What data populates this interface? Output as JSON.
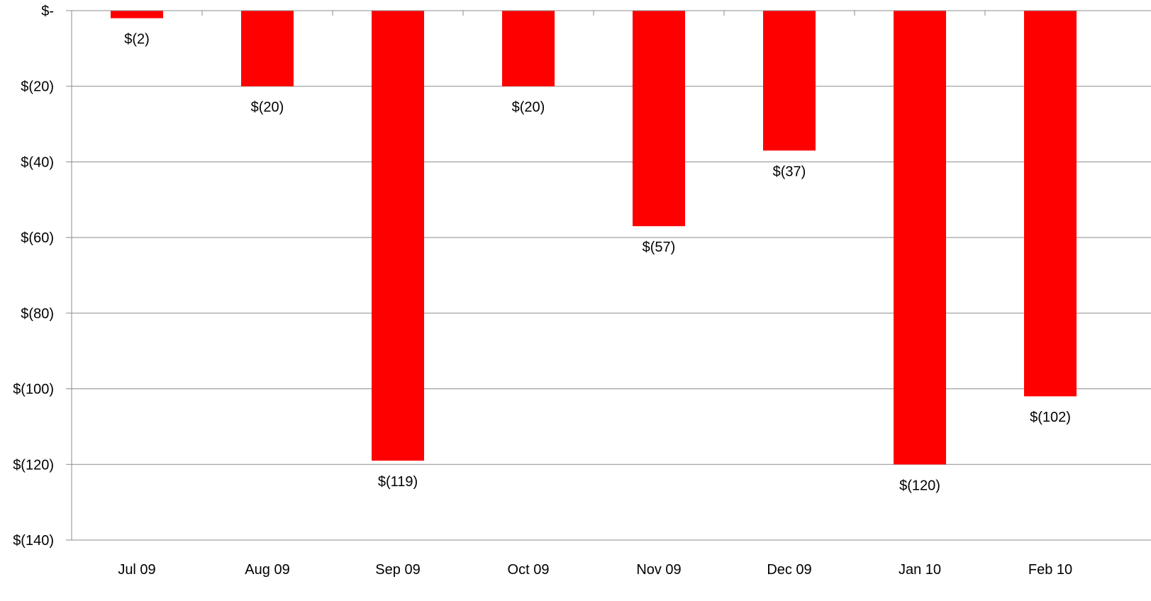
{
  "chart_data": {
    "type": "bar",
    "categories": [
      "Jul 09",
      "Aug 09",
      "Sep 09",
      "Oct 09",
      "Nov 09",
      "Dec 09",
      "Jan 10",
      "Feb 10"
    ],
    "series": [
      {
        "values": [
          -2,
          -20,
          -119,
          -20,
          -57,
          -37,
          -120,
          -102
        ],
        "data_labels": [
          "$(2)",
          "$(20)",
          "$(119)",
          "$(20)",
          "$(57)",
          "$(37)",
          "$(120)",
          "$(102)"
        ],
        "color": "#ff0000"
      }
    ],
    "yticks": [
      0,
      -20,
      -40,
      -60,
      -80,
      -100,
      -120,
      -140
    ],
    "ytick_labels": [
      "$-",
      "$(20)",
      "$(40)",
      "$(60)",
      "$(80)",
      "$(100)",
      "$(120)",
      "$(140)"
    ],
    "ylim": [
      -140,
      0
    ],
    "grid": true,
    "legend": "none",
    "title": "",
    "xlabel": "",
    "ylabel": ""
  }
}
